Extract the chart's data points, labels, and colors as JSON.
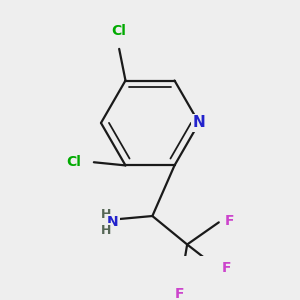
{
  "background_color": "#eeeeee",
  "atom_colors": {
    "C": "#000000",
    "N": "#2222cc",
    "Cl": "#00aa00",
    "F": "#cc44cc",
    "H": "#556655"
  },
  "bond_color": "#1a1a1a",
  "bond_width": 1.6,
  "figsize": [
    3.0,
    3.0
  ],
  "dpi": 100
}
